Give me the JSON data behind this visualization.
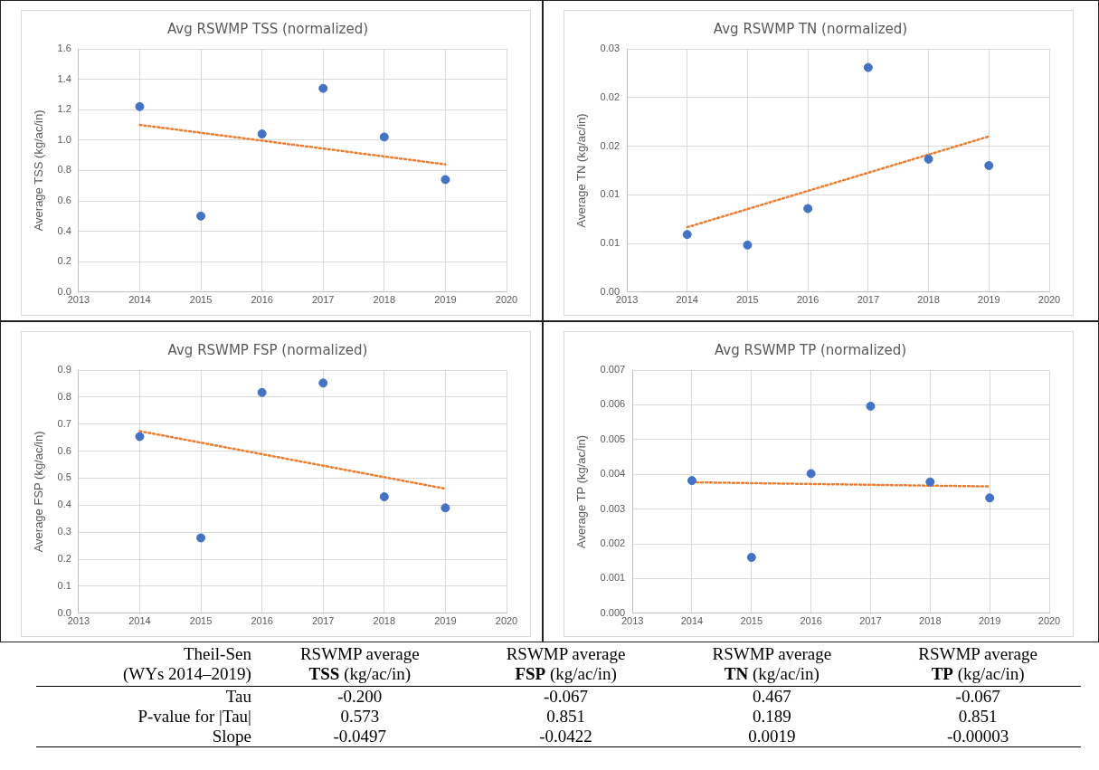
{
  "chart_data": [
    {
      "type": "scatter",
      "title": "Avg RSWMP TSS (normalized)",
      "ylabel": "Average TSS (kg/ac/in)",
      "xlim": [
        2013,
        2020
      ],
      "xticks": [
        2013,
        2014,
        2015,
        2016,
        2017,
        2018,
        2019,
        2020
      ],
      "ylim": [
        0,
        1.6
      ],
      "yticks": [
        {
          "value": 0,
          "label": "0.0"
        },
        {
          "value": 0.2,
          "label": "0.2"
        },
        {
          "value": 0.4,
          "label": "0.4"
        },
        {
          "value": 0.6,
          "label": "0.6"
        },
        {
          "value": 0.8,
          "label": "0.8"
        },
        {
          "value": 1,
          "label": "1.0"
        },
        {
          "value": 1.2,
          "label": "1.2"
        },
        {
          "value": 1.4,
          "label": "1.4"
        },
        {
          "value": 1.6,
          "label": "1.6"
        }
      ],
      "grid": true,
      "series": [
        {
          "color": "#4472c4",
          "marker": "circle",
          "x": [
            2014,
            2015,
            2016,
            2017,
            2018,
            2019
          ],
          "values": [
            1.22,
            0.5,
            1.04,
            1.34,
            1.02,
            0.74
          ]
        },
        {
          "type": "line",
          "color": "#ed7d31",
          "marker": "none",
          "line_style": "dotted",
          "x": [
            2014,
            2019
          ],
          "values": [
            1.1,
            0.84
          ]
        }
      ]
    },
    {
      "type": "scatter",
      "title": "Avg RSWMP TN (normalized)",
      "ylabel": "Average TN (kg/ac/in)",
      "xlim": [
        2013,
        2020
      ],
      "xticks": [
        2013,
        2014,
        2015,
        2016,
        2017,
        2018,
        2019,
        2020
      ],
      "ylim": [
        0,
        0.03
      ],
      "yticks": [
        {
          "value": 0,
          "label": "0.00"
        },
        {
          "value": 0.006,
          "label": "0.01"
        },
        {
          "value": 0.012,
          "label": "0.01"
        },
        {
          "value": 0.018,
          "label": "0.02"
        },
        {
          "value": 0.024,
          "label": "0.02"
        },
        {
          "value": 0.03,
          "label": "0.03"
        }
      ],
      "grid": true,
      "series": [
        {
          "color": "#4472c4",
          "marker": "circle",
          "x": [
            2014,
            2015,
            2016,
            2017,
            2018,
            2019
          ],
          "values": [
            0.0071,
            0.0058,
            0.0103,
            0.0277,
            0.0164,
            0.0156
          ]
        },
        {
          "type": "line",
          "color": "#ed7d31",
          "marker": "none",
          "line_style": "dotted",
          "x": [
            2014,
            2019
          ],
          "values": [
            0.008,
            0.0192
          ]
        }
      ]
    },
    {
      "type": "scatter",
      "title": "Avg RSWMP FSP (normalized)",
      "ylabel": "Average FSP (kg/ac/in)",
      "xlim": [
        2013,
        2020
      ],
      "xticks": [
        2013,
        2014,
        2015,
        2016,
        2017,
        2018,
        2019,
        2020
      ],
      "ylim": [
        0,
        0.9
      ],
      "yticks": [
        {
          "value": 0,
          "label": "0.0"
        },
        0.1,
        0.2,
        0.3,
        0.4,
        0.5,
        0.6,
        0.7,
        0.8,
        0.9
      ],
      "grid": true,
      "series": [
        {
          "color": "#4472c4",
          "marker": "circle",
          "x": [
            2014,
            2015,
            2016,
            2017,
            2018,
            2019
          ],
          "values": [
            0.654,
            0.279,
            0.817,
            0.852,
            0.431,
            0.39
          ]
        },
        {
          "type": "line",
          "color": "#ed7d31",
          "marker": "none",
          "line_style": "dotted",
          "x": [
            2014,
            2019
          ],
          "values": [
            0.674,
            0.461
          ]
        }
      ]
    },
    {
      "type": "scatter",
      "title": "Avg RSWMP TP (normalized)",
      "ylabel": "Average TP (kg/ac/in)",
      "xlim": [
        2013,
        2020
      ],
      "xticks": [
        2013,
        2014,
        2015,
        2016,
        2017,
        2018,
        2019,
        2020
      ],
      "ylim": [
        0,
        0.007
      ],
      "yticks": [
        {
          "value": 0,
          "label": "0.000"
        },
        {
          "value": 0.001,
          "label": "0.001"
        },
        {
          "value": 0.002,
          "label": "0.002"
        },
        {
          "value": 0.003,
          "label": "0.003"
        },
        {
          "value": 0.004,
          "label": "0.004"
        },
        {
          "value": 0.005,
          "label": "0.005"
        },
        {
          "value": 0.006,
          "label": "0.006"
        },
        {
          "value": 0.007,
          "label": "0.007"
        }
      ],
      "grid": true,
      "series": [
        {
          "color": "#4472c4",
          "marker": "circle",
          "x": [
            2014,
            2015,
            2016,
            2017,
            2018,
            2019
          ],
          "values": [
            0.00382,
            0.00161,
            0.00402,
            0.00596,
            0.00378,
            0.00332
          ]
        },
        {
          "type": "line",
          "color": "#ed7d31",
          "marker": "none",
          "line_style": "dotted",
          "x": [
            2014,
            2019
          ],
          "values": [
            0.00377,
            0.00365
          ]
        }
      ]
    },
    {
      "type": "other",
      "title": "Theil-Sen (WYs 2014–2019)",
      "categories": [
        "RSWMP average TSS (kg/ac/in)",
        "RSWMP average FSP (kg/ac/in)",
        "RSWMP average TN (kg/ac/in)",
        "RSWMP average TP (kg/ac/in)"
      ],
      "y_categories": [
        "Tau",
        "P-value for |Tau|",
        "Slope"
      ],
      "cell_labels": [
        [
          "-0.200",
          "-0.067",
          "0.467",
          "-0.067"
        ],
        [
          "0.573",
          "0.851",
          "0.189",
          "0.851"
        ],
        [
          "-0.0497",
          "-0.0422",
          "0.0019",
          "-0.00003"
        ]
      ]
    }
  ]
}
